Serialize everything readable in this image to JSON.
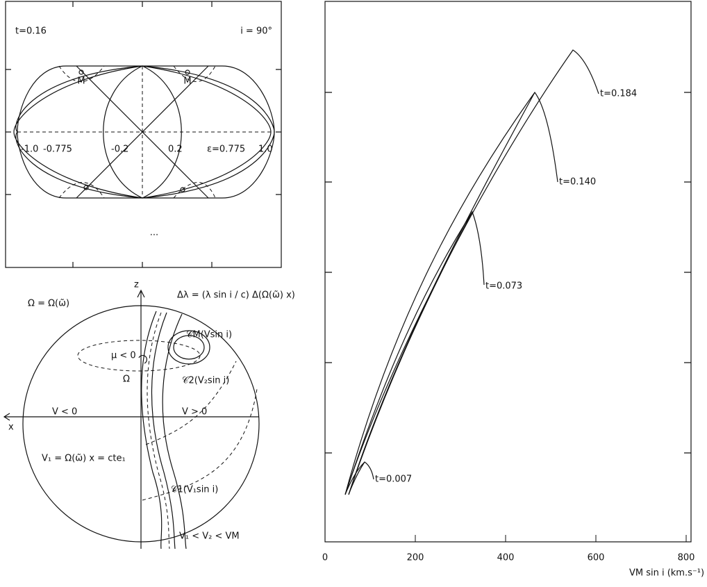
{
  "top_panel": {
    "t_label": "t=0.16",
    "i_label": "i = 90°",
    "marker_labels": [
      "M",
      "M"
    ],
    "axis_labels": [
      "-1.0",
      "-0.775",
      "-0.2",
      "0.2",
      "ε=0.775",
      "1.0"
    ],
    "note": "..."
  },
  "bottom_panel": {
    "title": "Ω = Ω(ω̃)",
    "formula": "Δλ = (λ sin i / c) Δ(Ω(ω̃) x)",
    "z_label": "z",
    "x_label": "x",
    "mu_label": "μ < 0",
    "omega_label": "Ω",
    "v_neg": "V < 0",
    "v_pos": "V > 0",
    "v1_def": "V₁ = Ω(ω̃) x = cte₁",
    "c_m": "𝒞M(Vsin i)",
    "c_2": "𝒞2(V₂sin i)",
    "c_1": "𝒞1(V₁sin i)",
    "ordering": "V₁ < V₂ < VM"
  },
  "right_panel": {
    "xlim": [
      0,
      800
    ],
    "xticks": [
      0,
      200,
      400,
      600,
      800
    ],
    "xlabel": "VM sin i (km.s⁻¹)",
    "curve_labels": [
      "t=0.184",
      "t=0.140",
      "t=0.073",
      "t=0.007"
    ]
  }
}
